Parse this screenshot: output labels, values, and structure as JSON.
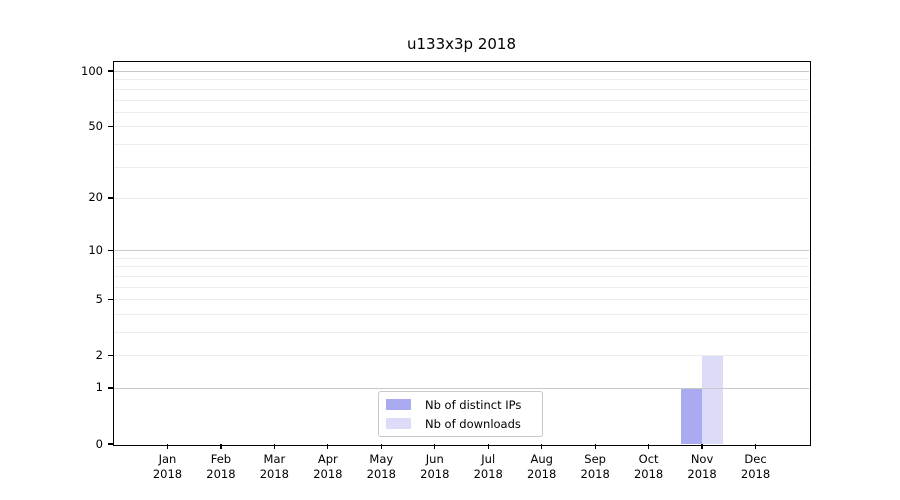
{
  "title": "u133x3p 2018",
  "chart_data": {
    "type": "bar",
    "title": "u133x3p 2018",
    "categories": [
      "Jan 2018",
      "Feb 2018",
      "Mar 2018",
      "Apr 2018",
      "May 2018",
      "Jun 2018",
      "Jul 2018",
      "Aug 2018",
      "Sep 2018",
      "Oct 2018",
      "Nov 2018",
      "Dec 2018"
    ],
    "series": [
      {
        "name": "Nb of distinct IPs",
        "color": "#aaaaf0",
        "values": [
          0,
          0,
          0,
          0,
          0,
          0,
          0,
          0,
          0,
          0,
          1,
          0
        ]
      },
      {
        "name": "Nb of downloads",
        "color": "#dcdcf8",
        "values": [
          0,
          0,
          0,
          0,
          0,
          0,
          0,
          0,
          0,
          0,
          2,
          0
        ]
      }
    ],
    "xlabel": "",
    "ylabel": "",
    "yscale": "log1p",
    "ylim": [
      0,
      112
    ],
    "yticks": [
      0,
      1,
      2,
      5,
      10,
      20,
      50,
      100
    ],
    "major_gridlines": [
      1,
      10,
      100
    ],
    "minor_gridlines": [
      2,
      3,
      4,
      5,
      6,
      7,
      8,
      9,
      20,
      30,
      40,
      50,
      60,
      70,
      80,
      90
    ],
    "grid": "horizontal",
    "legend_position": "lower center inside"
  },
  "legend": {
    "items": [
      {
        "label": "Nb of distinct IPs",
        "color": "#aaaaf0"
      },
      {
        "label": "Nb of downloads",
        "color": "#dcdcf8"
      }
    ]
  },
  "colors": {
    "major_grid": "#c8c8c8",
    "minor_grid": "#ececec",
    "axis": "#000000",
    "background": "#ffffff"
  }
}
